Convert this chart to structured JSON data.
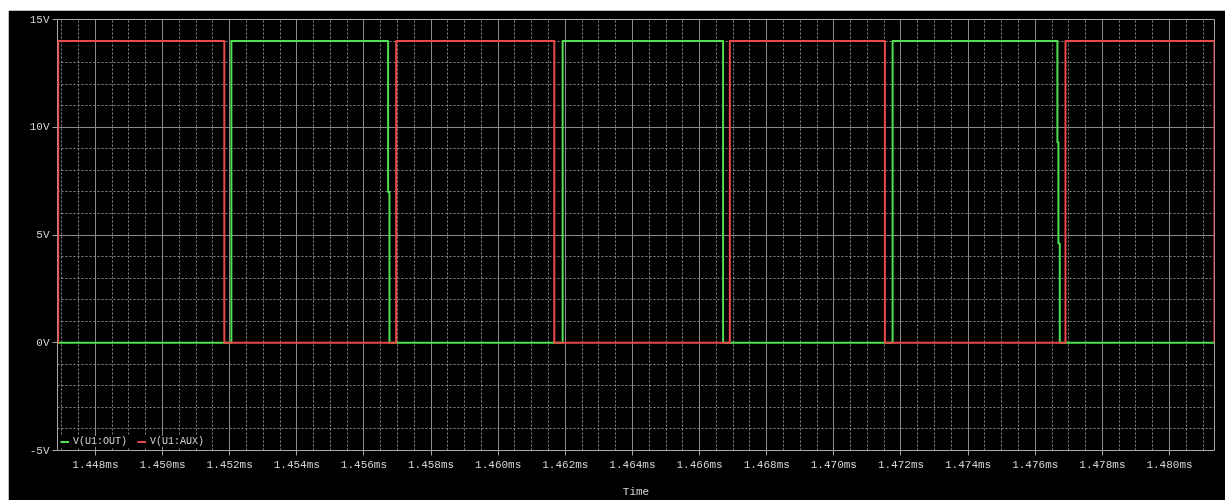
{
  "chart_data": {
    "type": "line",
    "xlabel": "Time",
    "xlim": [
      1.44687,
      1.48134
    ],
    "xticks": [
      {
        "value": 1.448,
        "label": "1.448ms"
      },
      {
        "value": 1.45,
        "label": "1.450ms"
      },
      {
        "value": 1.452,
        "label": "1.452ms"
      },
      {
        "value": 1.454,
        "label": "1.454ms"
      },
      {
        "value": 1.456,
        "label": "1.456ms"
      },
      {
        "value": 1.458,
        "label": "1.458ms"
      },
      {
        "value": 1.46,
        "label": "1.460ms"
      },
      {
        "value": 1.462,
        "label": "1.462ms"
      },
      {
        "value": 1.464,
        "label": "1.464ms"
      },
      {
        "value": 1.466,
        "label": "1.466ms"
      },
      {
        "value": 1.468,
        "label": "1.468ms"
      },
      {
        "value": 1.47,
        "label": "1.470ms"
      },
      {
        "value": 1.472,
        "label": "1.472ms"
      },
      {
        "value": 1.474,
        "label": "1.474ms"
      },
      {
        "value": 1.476,
        "label": "1.476ms"
      },
      {
        "value": 1.478,
        "label": "1.478ms"
      },
      {
        "value": 1.48,
        "label": "1.480ms"
      }
    ],
    "ylim": [
      -5,
      15
    ],
    "yticks": [
      {
        "value": -5,
        "label": "-5V"
      },
      {
        "value": 0,
        "label": "0V"
      },
      {
        "value": 5,
        "label": "5V"
      },
      {
        "value": 10,
        "label": "10V"
      },
      {
        "value": 15,
        "label": "15V"
      }
    ],
    "grid": true,
    "legend": "bottom left",
    "series": [
      {
        "name": "V(U1:OUT)",
        "color": "#50e050",
        "x": [
          1.44687,
          1.45205,
          1.45205,
          1.45672,
          1.45672,
          1.45676,
          1.45676,
          1.46192,
          1.46192,
          1.4667,
          1.4667,
          1.47175,
          1.47175,
          1.47666,
          1.47666,
          1.47669,
          1.47669,
          1.47673,
          1.47673,
          1.48134
        ],
        "values": [
          0,
          0,
          14,
          14,
          7,
          7,
          0,
          0,
          14,
          14,
          0,
          0,
          14,
          14,
          9.3,
          9.3,
          4.6,
          4.6,
          0,
          0
        ]
      },
      {
        "name": "V(U1:AUX)",
        "color": "#e84a4a",
        "x": [
          1.44687,
          1.44689,
          1.44689,
          1.45184,
          1.45184,
          1.45696,
          1.45696,
          1.46167,
          1.46167,
          1.4669,
          1.4669,
          1.47152,
          1.47152,
          1.4769,
          1.4769,
          1.48134,
          1.48134
        ],
        "values": [
          0,
          0,
          14,
          14,
          0,
          0,
          14,
          14,
          0,
          0,
          14,
          14,
          0,
          0,
          14,
          14,
          0
        ]
      }
    ]
  }
}
